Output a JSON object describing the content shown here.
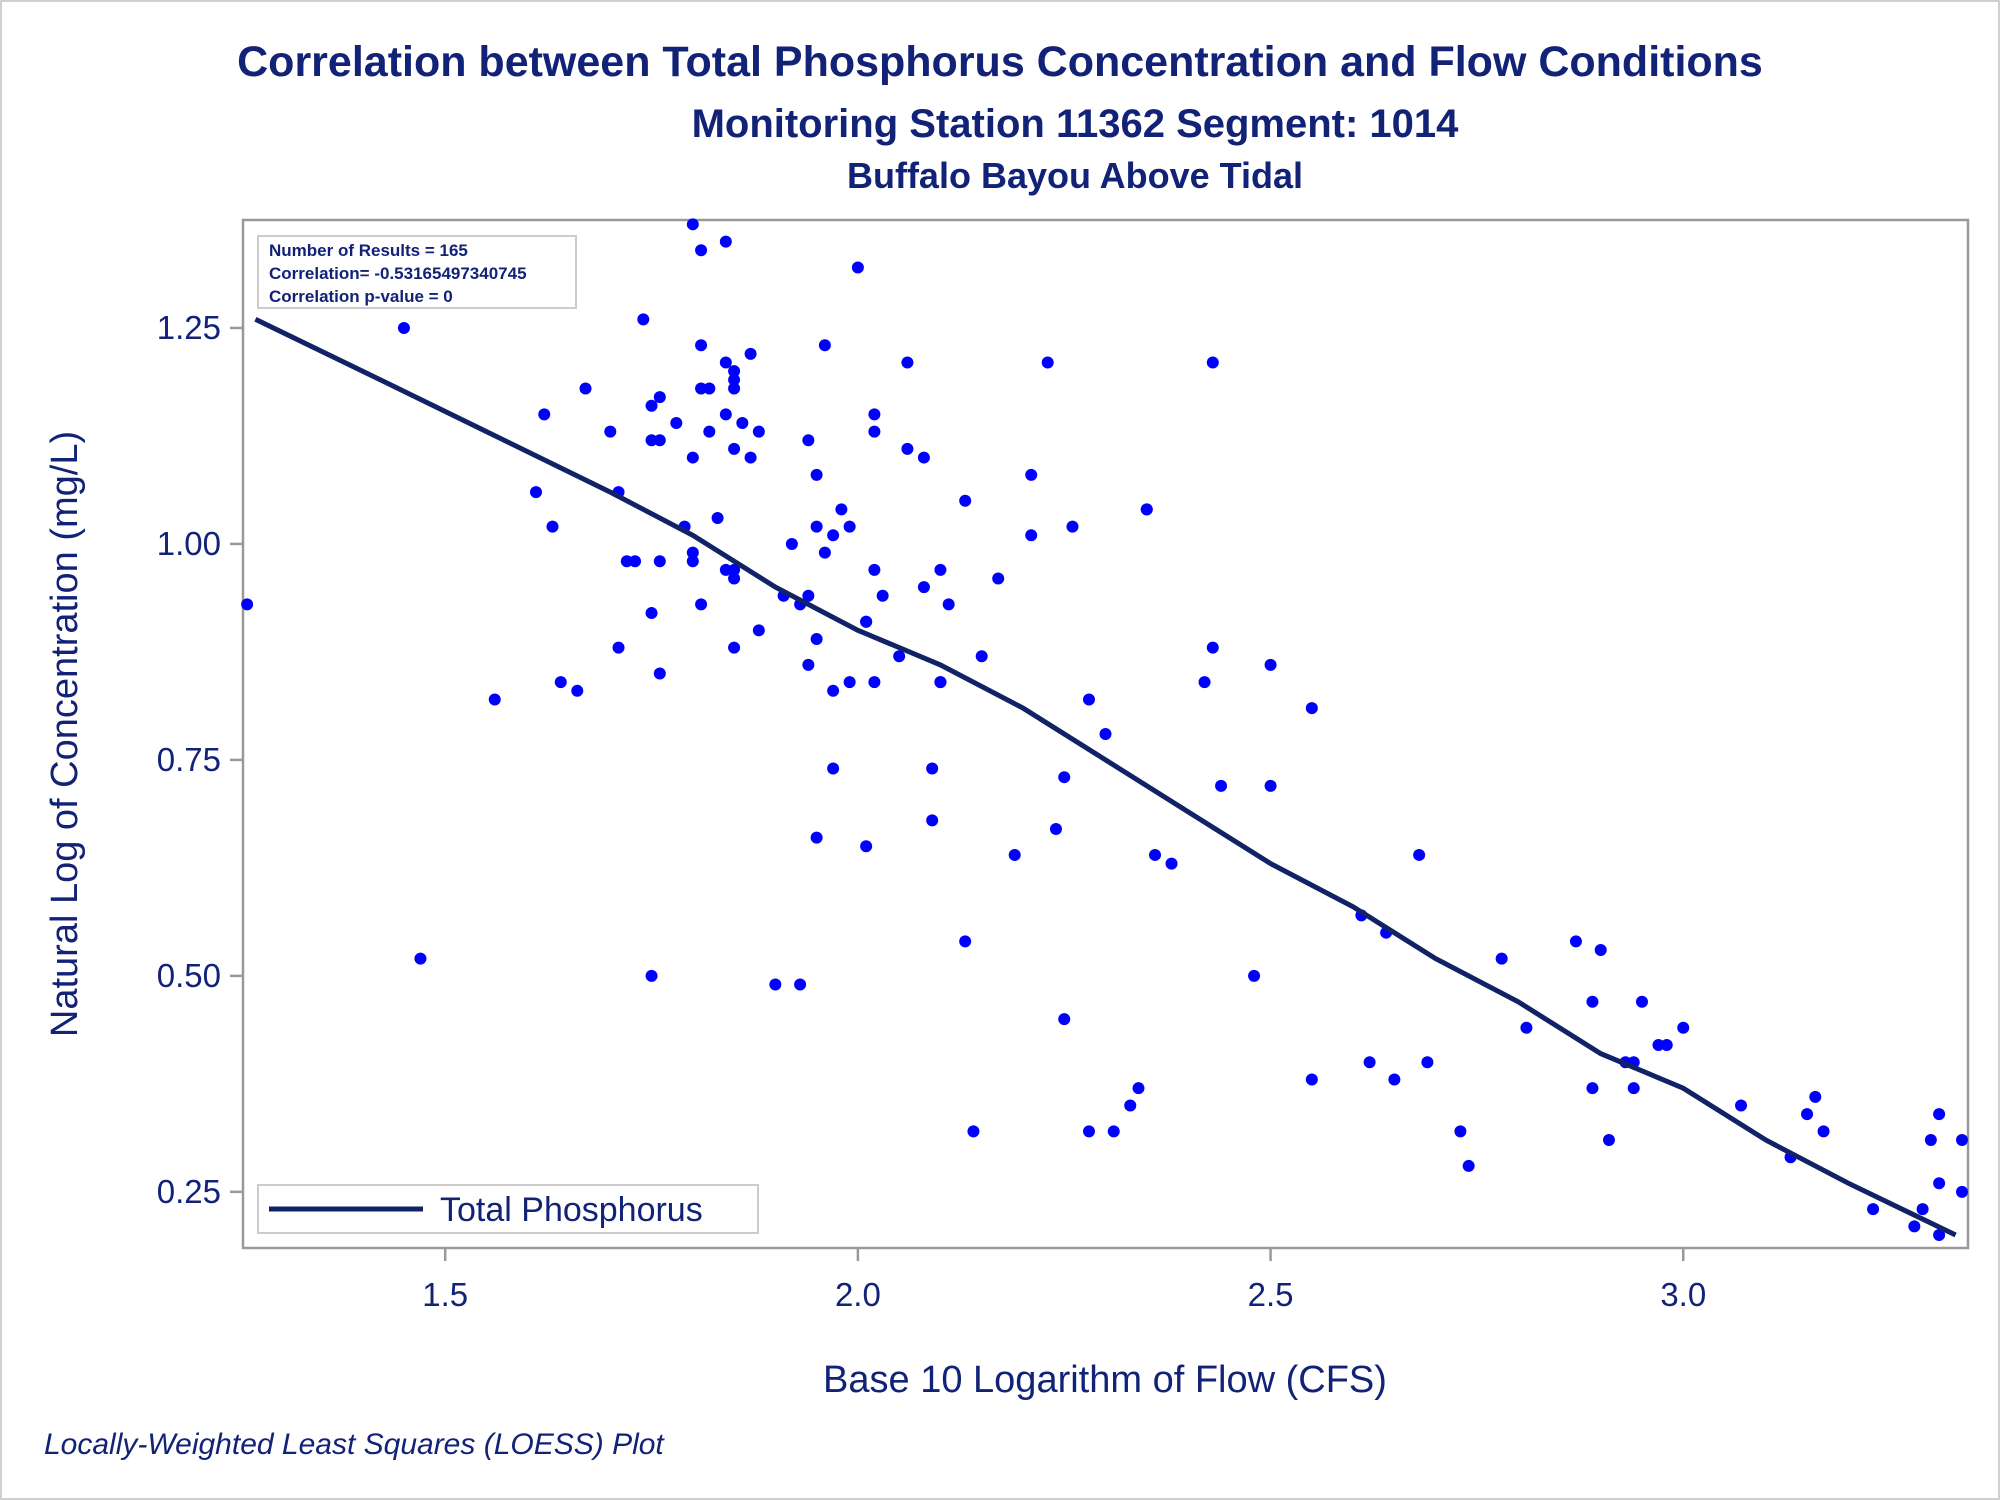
{
  "title": "Correlation between Total Phosphorus Concentration and Flow Conditions",
  "subtitle": "Monitoring Station 11362 Segment: 1014",
  "subtitle2": "Buffalo Bayou Above Tidal",
  "footnote": "Locally-Weighted Least Squares (LOESS) Plot",
  "colors": {
    "text": "#112277",
    "points": "#0000ff",
    "line": "#112266",
    "axis": "#999999"
  },
  "chart_data": {
    "type": "scatter",
    "xlabel": "Base 10 Logarithm of Flow (CFS)",
    "ylabel": "Natural Log of Concentration (mg/L)",
    "xlim": [
      1.255,
      3.345
    ],
    "ylim": [
      0.185,
      1.375
    ],
    "x_ticks": [
      1.5,
      2.0,
      2.5,
      3.0
    ],
    "x_tick_labels": [
      "1.5",
      "2.0",
      "2.5",
      "3.0"
    ],
    "y_ticks": [
      0.25,
      0.5,
      0.75,
      1.0,
      1.25
    ],
    "y_tick_labels": [
      "0.25",
      "0.50",
      "0.75",
      "1.00",
      "1.25"
    ],
    "grid": false,
    "inset_box": {
      "position": "top-left",
      "lines": [
        "Number of Results = 165",
        "Correlation= -0.53165497340745",
        "Correlation p-value = 0"
      ]
    },
    "legend": {
      "position": "bottom-left",
      "entries": [
        "Total Phosphorus"
      ]
    },
    "fit_line": {
      "name": "Total Phosphorus",
      "points": [
        [
          1.27,
          1.26
        ],
        [
          1.4,
          1.2
        ],
        [
          1.55,
          1.13
        ],
        [
          1.7,
          1.06
        ],
        [
          1.8,
          1.01
        ],
        [
          1.9,
          0.95
        ],
        [
          2.0,
          0.9
        ],
        [
          2.1,
          0.86
        ],
        [
          2.2,
          0.81
        ],
        [
          2.3,
          0.75
        ],
        [
          2.4,
          0.69
        ],
        [
          2.5,
          0.63
        ],
        [
          2.6,
          0.58
        ],
        [
          2.7,
          0.52
        ],
        [
          2.8,
          0.47
        ],
        [
          2.9,
          0.41
        ],
        [
          3.0,
          0.37
        ],
        [
          3.1,
          0.31
        ],
        [
          3.2,
          0.26
        ],
        [
          3.33,
          0.2
        ]
      ]
    },
    "points": [
      [
        1.26,
        0.93
      ],
      [
        1.45,
        1.25
      ],
      [
        1.47,
        0.52
      ],
      [
        1.56,
        0.82
      ],
      [
        1.61,
        1.06
      ],
      [
        1.62,
        1.15
      ],
      [
        1.63,
        1.02
      ],
      [
        1.64,
        0.84
      ],
      [
        1.66,
        0.83
      ],
      [
        1.67,
        1.18
      ],
      [
        1.7,
        1.13
      ],
      [
        1.71,
        1.06
      ],
      [
        1.71,
        0.88
      ],
      [
        1.72,
        0.98
      ],
      [
        1.73,
        0.98
      ],
      [
        1.74,
        1.26
      ],
      [
        1.75,
        1.16
      ],
      [
        1.75,
        1.12
      ],
      [
        1.75,
        0.92
      ],
      [
        1.75,
        0.5
      ],
      [
        1.76,
        1.17
      ],
      [
        1.76,
        1.12
      ],
      [
        1.76,
        0.98
      ],
      [
        1.76,
        0.85
      ],
      [
        1.78,
        1.14
      ],
      [
        1.79,
        1.02
      ],
      [
        1.8,
        1.37
      ],
      [
        1.8,
        1.1
      ],
      [
        1.8,
        0.99
      ],
      [
        1.8,
        0.98
      ],
      [
        1.81,
        1.34
      ],
      [
        1.81,
        1.23
      ],
      [
        1.81,
        1.18
      ],
      [
        1.81,
        0.93
      ],
      [
        1.82,
        1.13
      ],
      [
        1.82,
        1.18
      ],
      [
        1.83,
        1.03
      ],
      [
        1.84,
        1.21
      ],
      [
        1.84,
        1.15
      ],
      [
        1.84,
        1.35
      ],
      [
        1.84,
        0.97
      ],
      [
        1.85,
        1.19
      ],
      [
        1.85,
        0.88
      ],
      [
        1.85,
        1.2
      ],
      [
        1.85,
        1.18
      ],
      [
        1.85,
        1.11
      ],
      [
        1.85,
        0.97
      ],
      [
        1.85,
        0.96
      ],
      [
        1.86,
        1.14
      ],
      [
        1.87,
        1.22
      ],
      [
        1.87,
        1.1
      ],
      [
        1.88,
        1.13
      ],
      [
        1.88,
        0.9
      ],
      [
        1.9,
        0.49
      ],
      [
        1.91,
        0.94
      ],
      [
        1.92,
        1.0
      ],
      [
        1.93,
        0.49
      ],
      [
        1.93,
        0.93
      ],
      [
        1.94,
        1.12
      ],
      [
        1.94,
        0.86
      ],
      [
        1.94,
        0.94
      ],
      [
        1.95,
        1.08
      ],
      [
        1.95,
        1.02
      ],
      [
        1.95,
        0.66
      ],
      [
        1.95,
        0.89
      ],
      [
        1.96,
        1.23
      ],
      [
        1.96,
        0.99
      ],
      [
        1.97,
        1.01
      ],
      [
        1.97,
        0.83
      ],
      [
        1.97,
        0.74
      ],
      [
        1.98,
        1.04
      ],
      [
        1.99,
        1.02
      ],
      [
        1.99,
        0.84
      ],
      [
        2.0,
        1.32
      ],
      [
        2.01,
        0.91
      ],
      [
        2.01,
        0.91
      ],
      [
        2.01,
        0.65
      ],
      [
        2.02,
        1.15
      ],
      [
        2.02,
        1.13
      ],
      [
        2.02,
        0.84
      ],
      [
        2.02,
        0.97
      ],
      [
        2.03,
        0.94
      ],
      [
        2.05,
        0.87
      ],
      [
        2.06,
        1.11
      ],
      [
        2.06,
        1.21
      ],
      [
        2.08,
        1.1
      ],
      [
        2.08,
        0.95
      ],
      [
        2.09,
        0.74
      ],
      [
        2.09,
        0.68
      ],
      [
        2.1,
        0.97
      ],
      [
        2.1,
        0.84
      ],
      [
        2.1,
        0.84
      ],
      [
        2.11,
        0.93
      ],
      [
        2.13,
        0.54
      ],
      [
        2.13,
        1.05
      ],
      [
        2.14,
        0.32
      ],
      [
        2.15,
        0.87
      ],
      [
        2.17,
        0.96
      ],
      [
        2.19,
        0.64
      ],
      [
        2.21,
        1.08
      ],
      [
        2.21,
        1.01
      ],
      [
        2.23,
        1.21
      ],
      [
        2.24,
        0.67
      ],
      [
        2.25,
        0.45
      ],
      [
        2.25,
        0.73
      ],
      [
        2.26,
        1.02
      ],
      [
        2.28,
        0.82
      ],
      [
        2.28,
        0.32
      ],
      [
        2.3,
        0.78
      ],
      [
        2.31,
        0.32
      ],
      [
        2.33,
        0.35
      ],
      [
        2.34,
        0.37
      ],
      [
        2.35,
        1.04
      ],
      [
        2.35,
        1.04
      ],
      [
        2.36,
        0.64
      ],
      [
        2.38,
        0.63
      ],
      [
        2.42,
        0.84
      ],
      [
        2.43,
        0.88
      ],
      [
        2.43,
        1.21
      ],
      [
        2.44,
        0.72
      ],
      [
        2.48,
        0.5
      ],
      [
        2.5,
        0.72
      ],
      [
        2.5,
        0.86
      ],
      [
        2.55,
        0.38
      ],
      [
        2.55,
        0.81
      ],
      [
        2.61,
        0.57
      ],
      [
        2.62,
        0.4
      ],
      [
        2.64,
        0.55
      ],
      [
        2.65,
        0.38
      ],
      [
        2.68,
        0.64
      ],
      [
        2.69,
        0.4
      ],
      [
        2.73,
        0.32
      ],
      [
        2.74,
        0.28
      ],
      [
        2.78,
        0.52
      ],
      [
        2.81,
        0.44
      ],
      [
        2.87,
        0.54
      ],
      [
        2.89,
        0.47
      ],
      [
        2.89,
        0.37
      ],
      [
        2.9,
        0.53
      ],
      [
        2.91,
        0.31
      ],
      [
        2.93,
        0.4
      ],
      [
        2.94,
        0.4
      ],
      [
        2.94,
        0.37
      ],
      [
        2.95,
        0.47
      ],
      [
        2.97,
        0.42
      ],
      [
        2.98,
        0.42
      ],
      [
        3.0,
        0.44
      ],
      [
        3.07,
        0.35
      ],
      [
        3.13,
        0.29
      ],
      [
        3.15,
        0.34
      ],
      [
        3.16,
        0.36
      ],
      [
        3.17,
        0.32
      ],
      [
        3.23,
        0.23
      ],
      [
        3.28,
        0.21
      ],
      [
        3.29,
        0.23
      ],
      [
        3.3,
        0.31
      ],
      [
        3.31,
        0.26
      ],
      [
        3.31,
        0.34
      ],
      [
        3.31,
        0.2
      ],
      [
        3.34,
        0.25
      ],
      [
        3.37,
        0.31
      ]
    ]
  }
}
